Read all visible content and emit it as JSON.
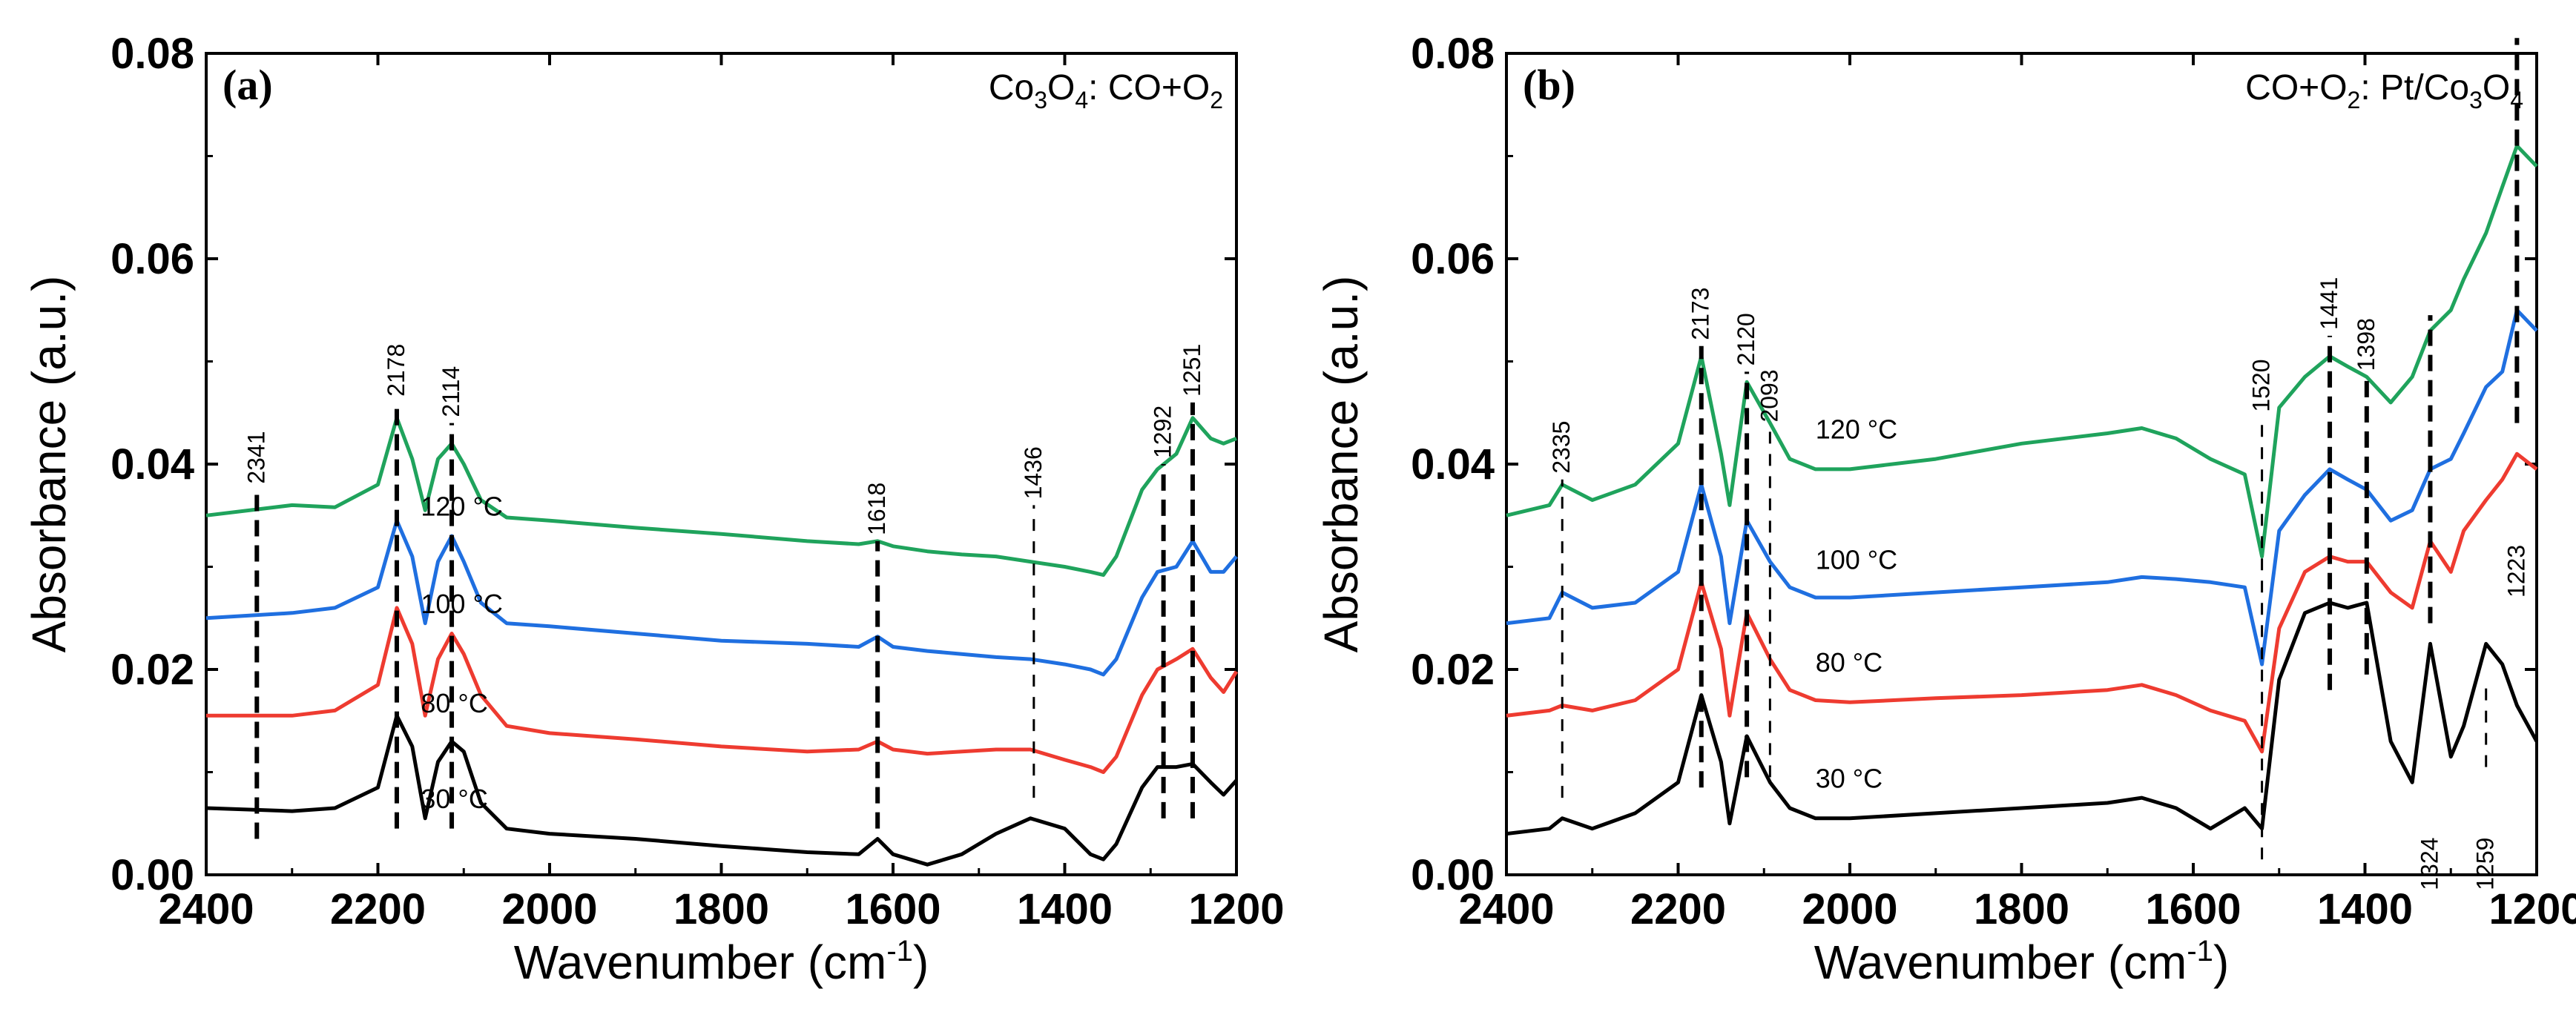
{
  "chart_data": [
    {
      "type": "line",
      "panel": "(a)",
      "title": "Co3O4: CO+O2",
      "title_parts": [
        "Co",
        "3",
        "O",
        "4",
        ": CO+O",
        "2"
      ],
      "xlabel": "Wavenumber (cm",
      "xlabel_sup": "-1",
      "xlabel_end": ")",
      "ylabel": "Absorbance (a.u.)",
      "xlim": [
        2400,
        1200
      ],
      "ylim": [
        0,
        0.08
      ],
      "xticks": [
        2400,
        2200,
        2000,
        1800,
        1600,
        1400,
        1200
      ],
      "yticks": [
        0.0,
        0.02,
        0.04,
        0.06,
        0.08
      ],
      "ytick_labels": [
        "0.00",
        "0.02",
        "0.04",
        "0.06",
        "0.08"
      ],
      "series": [
        {
          "name": "30 °C",
          "color": "#000000",
          "x": [
            2400,
            2300,
            2250,
            2200,
            2178,
            2160,
            2145,
            2130,
            2114,
            2100,
            2080,
            2050,
            2000,
            1900,
            1800,
            1700,
            1640,
            1618,
            1600,
            1560,
            1520,
            1480,
            1440,
            1400,
            1370,
            1355,
            1340,
            1310,
            1292,
            1270,
            1251,
            1230,
            1215,
            1200
          ],
          "y": [
            0.0065,
            0.0062,
            0.0065,
            0.0085,
            0.0155,
            0.0125,
            0.0055,
            0.011,
            0.013,
            0.012,
            0.007,
            0.0045,
            0.004,
            0.0035,
            0.0028,
            0.0022,
            0.002,
            0.0035,
            0.002,
            0.001,
            0.002,
            0.004,
            0.0055,
            0.0045,
            0.002,
            0.0015,
            0.003,
            0.0085,
            0.0105,
            0.0105,
            0.0108,
            0.009,
            0.0078,
            0.0092
          ]
        },
        {
          "name": "80 °C",
          "color": "#ee3b30",
          "x": [
            2400,
            2300,
            2250,
            2200,
            2178,
            2160,
            2145,
            2130,
            2114,
            2100,
            2080,
            2050,
            2000,
            1900,
            1800,
            1700,
            1640,
            1618,
            1600,
            1560,
            1520,
            1480,
            1440,
            1400,
            1370,
            1355,
            1340,
            1310,
            1292,
            1270,
            1251,
            1230,
            1215,
            1200
          ],
          "y": [
            0.0155,
            0.0155,
            0.016,
            0.0185,
            0.026,
            0.0225,
            0.0155,
            0.021,
            0.0235,
            0.0215,
            0.0175,
            0.0145,
            0.0138,
            0.0132,
            0.0125,
            0.012,
            0.0122,
            0.013,
            0.0122,
            0.0118,
            0.012,
            0.0122,
            0.0122,
            0.0112,
            0.0105,
            0.01,
            0.0115,
            0.0175,
            0.02,
            0.021,
            0.022,
            0.0192,
            0.0178,
            0.0198
          ]
        },
        {
          "name": "100 °C",
          "color": "#1f6fe0",
          "x": [
            2400,
            2300,
            2250,
            2200,
            2178,
            2160,
            2145,
            2130,
            2114,
            2100,
            2080,
            2050,
            2000,
            1900,
            1800,
            1700,
            1640,
            1618,
            1600,
            1560,
            1520,
            1480,
            1440,
            1400,
            1370,
            1355,
            1340,
            1310,
            1292,
            1270,
            1251,
            1230,
            1215,
            1200
          ],
          "y": [
            0.025,
            0.0255,
            0.026,
            0.028,
            0.0345,
            0.031,
            0.0245,
            0.0305,
            0.033,
            0.0305,
            0.0265,
            0.0245,
            0.0242,
            0.0235,
            0.0228,
            0.0225,
            0.0222,
            0.0232,
            0.0222,
            0.0218,
            0.0215,
            0.0212,
            0.021,
            0.0205,
            0.02,
            0.0195,
            0.021,
            0.027,
            0.0295,
            0.03,
            0.0325,
            0.0295,
            0.0295,
            0.031
          ]
        },
        {
          "name": "120 °C",
          "color": "#1fa35c",
          "x": [
            2400,
            2300,
            2250,
            2200,
            2178,
            2160,
            2145,
            2130,
            2114,
            2100,
            2080,
            2050,
            2000,
            1900,
            1800,
            1700,
            1640,
            1618,
            1600,
            1560,
            1520,
            1480,
            1440,
            1400,
            1370,
            1355,
            1340,
            1310,
            1292,
            1270,
            1251,
            1230,
            1215,
            1200
          ],
          "y": [
            0.035,
            0.036,
            0.0358,
            0.038,
            0.0445,
            0.0405,
            0.0355,
            0.0405,
            0.042,
            0.04,
            0.0365,
            0.0348,
            0.0345,
            0.0338,
            0.0332,
            0.0325,
            0.0322,
            0.0325,
            0.032,
            0.0315,
            0.0312,
            0.031,
            0.0305,
            0.03,
            0.0295,
            0.0292,
            0.031,
            0.0375,
            0.0395,
            0.041,
            0.0445,
            0.0425,
            0.042,
            0.0425
          ]
        }
      ],
      "temperature_labels": [
        {
          "text": "120 °C",
          "x": 2150,
          "y": 0.035
        },
        {
          "text": "100 °C",
          "x": 2150,
          "y": 0.0255
        },
        {
          "text": "80 °C",
          "x": 2150,
          "y": 0.0158
        },
        {
          "text": "30 °C",
          "x": 2150,
          "y": 0.0065
        }
      ],
      "peak_markers": [
        {
          "label": "2341",
          "x": 2341,
          "y_bottom": 0.0035,
          "y_top": 0.0375,
          "bold": true
        },
        {
          "label": "2178",
          "x": 2178,
          "y_bottom": 0.0045,
          "y_top": 0.046,
          "bold": true
        },
        {
          "label": "2114",
          "x": 2114,
          "y_bottom": 0.0045,
          "y_top": 0.044,
          "bold": true
        },
        {
          "label": "1618",
          "x": 1618,
          "y_bottom": 0.0045,
          "y_top": 0.0325,
          "bold": true
        },
        {
          "label": "1436",
          "x": 1436,
          "y_bottom": 0.0075,
          "y_top": 0.036,
          "bold": false
        },
        {
          "label": "1292",
          "x": 1285,
          "y_bottom": 0.0055,
          "y_top": 0.04,
          "bold": true
        },
        {
          "label": "1251",
          "x": 1251,
          "y_bottom": 0.0055,
          "y_top": 0.046,
          "bold": true
        }
      ]
    },
    {
      "type": "line",
      "panel": "(b)",
      "title": "CO+O2: Pt/Co3O4",
      "title_parts": [
        "CO+O",
        "2",
        ": Pt/Co",
        "3",
        "O",
        "4"
      ],
      "xlabel": "Wavenumber (cm",
      "xlabel_sup": "-1",
      "xlabel_end": ")",
      "ylabel": "Absorbance (a.u.)",
      "xlim": [
        2400,
        1200
      ],
      "ylim": [
        0,
        0.08
      ],
      "xticks": [
        2400,
        2200,
        2000,
        1800,
        1600,
        1400,
        1200
      ],
      "yticks": [
        0.0,
        0.02,
        0.04,
        0.06,
        0.08
      ],
      "ytick_labels": [
        "0.00",
        "0.02",
        "0.04",
        "0.06",
        "0.08"
      ],
      "series": [
        {
          "name": "30 °C",
          "color": "#000000",
          "x": [
            2400,
            2350,
            2335,
            2300,
            2250,
            2200,
            2173,
            2150,
            2140,
            2120,
            2093,
            2070,
            2040,
            2000,
            1900,
            1800,
            1700,
            1660,
            1620,
            1580,
            1540,
            1520,
            1500,
            1470,
            1441,
            1420,
            1398,
            1370,
            1345,
            1324,
            1300,
            1285,
            1259,
            1240,
            1223,
            1200
          ],
          "y": [
            0.004,
            0.0045,
            0.0055,
            0.0045,
            0.006,
            0.009,
            0.0175,
            0.011,
            0.005,
            0.0135,
            0.009,
            0.0065,
            0.0055,
            0.0055,
            0.006,
            0.0065,
            0.007,
            0.0075,
            0.0065,
            0.0045,
            0.0065,
            0.0045,
            0.019,
            0.0255,
            0.0265,
            0.026,
            0.0265,
            0.013,
            0.009,
            0.0225,
            0.0115,
            0.0145,
            0.0225,
            0.0205,
            0.0165,
            0.013
          ]
        },
        {
          "name": "80 °C",
          "color": "#ee3b30",
          "x": [
            2400,
            2350,
            2335,
            2300,
            2250,
            2200,
            2173,
            2150,
            2140,
            2120,
            2093,
            2070,
            2040,
            2000,
            1900,
            1800,
            1700,
            1660,
            1620,
            1580,
            1540,
            1520,
            1500,
            1470,
            1441,
            1420,
            1398,
            1370,
            1345,
            1324,
            1300,
            1285,
            1259,
            1240,
            1223,
            1200
          ],
          "y": [
            0.0155,
            0.016,
            0.0165,
            0.016,
            0.017,
            0.02,
            0.0285,
            0.022,
            0.0155,
            0.0255,
            0.021,
            0.018,
            0.017,
            0.0168,
            0.0172,
            0.0175,
            0.018,
            0.0185,
            0.0175,
            0.016,
            0.015,
            0.012,
            0.024,
            0.0295,
            0.031,
            0.0305,
            0.0305,
            0.0275,
            0.026,
            0.0325,
            0.0295,
            0.0335,
            0.0365,
            0.0385,
            0.041,
            0.0395
          ]
        },
        {
          "name": "100 °C",
          "color": "#1f6fe0",
          "x": [
            2400,
            2350,
            2335,
            2300,
            2250,
            2200,
            2173,
            2150,
            2140,
            2120,
            2093,
            2070,
            2040,
            2000,
            1900,
            1800,
            1700,
            1660,
            1620,
            1580,
            1540,
            1520,
            1500,
            1470,
            1441,
            1420,
            1398,
            1370,
            1345,
            1324,
            1300,
            1285,
            1259,
            1240,
            1223,
            1200
          ],
          "y": [
            0.0245,
            0.025,
            0.0275,
            0.026,
            0.0265,
            0.0295,
            0.038,
            0.031,
            0.0245,
            0.0345,
            0.0305,
            0.028,
            0.027,
            0.027,
            0.0275,
            0.028,
            0.0285,
            0.029,
            0.0288,
            0.0285,
            0.028,
            0.0205,
            0.0335,
            0.037,
            0.0395,
            0.0385,
            0.0375,
            0.0345,
            0.0355,
            0.0395,
            0.0405,
            0.043,
            0.0475,
            0.049,
            0.055,
            0.053
          ]
        },
        {
          "name": "120 °C",
          "color": "#1fa35c",
          "x": [
            2400,
            2350,
            2335,
            2300,
            2250,
            2200,
            2173,
            2150,
            2140,
            2120,
            2093,
            2070,
            2040,
            2000,
            1900,
            1800,
            1700,
            1660,
            1620,
            1580,
            1540,
            1520,
            1500,
            1470,
            1441,
            1420,
            1398,
            1370,
            1345,
            1324,
            1300,
            1285,
            1259,
            1240,
            1223,
            1200
          ],
          "y": [
            0.035,
            0.036,
            0.038,
            0.0365,
            0.038,
            0.042,
            0.0505,
            0.041,
            0.036,
            0.048,
            0.044,
            0.0405,
            0.0395,
            0.0395,
            0.0405,
            0.042,
            0.043,
            0.0435,
            0.0425,
            0.0405,
            0.039,
            0.031,
            0.0455,
            0.0485,
            0.0505,
            0.0495,
            0.0485,
            0.046,
            0.0485,
            0.053,
            0.055,
            0.058,
            0.0625,
            0.067,
            0.071,
            0.069
          ]
        }
      ],
      "temperature_labels": [
        {
          "text": "120 °C",
          "x": 2040,
          "y": 0.0425
        },
        {
          "text": "100 °C",
          "x": 2040,
          "y": 0.0298
        },
        {
          "text": "80 °C",
          "x": 2040,
          "y": 0.0198
        },
        {
          "text": "30 °C",
          "x": 2040,
          "y": 0.0085
        }
      ],
      "peak_markers": [
        {
          "label": "2335",
          "x": 2335,
          "y_bottom": 0.0075,
          "y_top": 0.0385,
          "bold": false
        },
        {
          "label": "2173",
          "x": 2173,
          "y_bottom": 0.0085,
          "y_top": 0.0515,
          "bold": true
        },
        {
          "label": "2120",
          "x": 2120,
          "y_bottom": 0.0095,
          "y_top": 0.049,
          "bold": true
        },
        {
          "label": "2093",
          "x": 2093,
          "y_bottom": 0.0095,
          "y_top": 0.0435,
          "bold": false
        },
        {
          "label": "1520",
          "x": 1520,
          "y_bottom": 0.0015,
          "y_top": 0.0445,
          "bold": false
        },
        {
          "label": "1441",
          "x": 1441,
          "y_bottom": 0.018,
          "y_top": 0.0525,
          "bold": true
        },
        {
          "label": "1398",
          "x": 1398,
          "y_bottom": 0.0195,
          "y_top": 0.0485,
          "bold": true
        },
        {
          "label": "1324",
          "x": 1324,
          "y_bottom": 0.0245,
          "y_top": 0.0545,
          "bold": true
        },
        {
          "label": "1223",
          "x": 1223,
          "y_bottom": 0.044,
          "y_top": 0.0815,
          "bold": true
        }
      ],
      "low_labels": [
        {
          "label": "1324",
          "x": 1324
        },
        {
          "label": "1259",
          "x": 1259
        },
        {
          "label": "1223",
          "x": 1223,
          "upper": true
        }
      ]
    }
  ]
}
